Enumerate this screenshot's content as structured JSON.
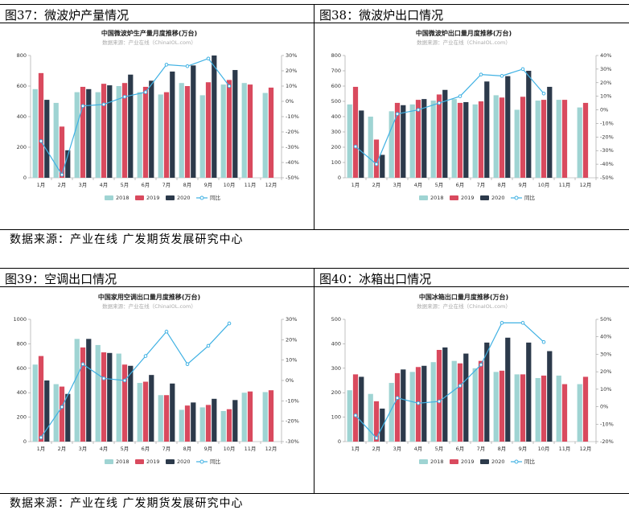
{
  "panels": [
    {
      "header": "图37：微波炉产量情况",
      "chart_data": {
        "type": "bar",
        "title": "中国微波炉生产量月度推移(万台)",
        "subtitle": "数据来源：产业在线（ChinaIOL.com）",
        "categories": [
          "1月",
          "2月",
          "3月",
          "4月",
          "5月",
          "6月",
          "7月",
          "8月",
          "9月",
          "10月",
          "11月",
          "12月"
        ],
        "series": [
          {
            "name": "2018",
            "values": [
              580,
              490,
              560,
              560,
              600,
              560,
              545,
              620,
              540,
              610,
              620,
              555
            ],
            "color": "#9fd4d3"
          },
          {
            "name": "2019",
            "values": [
              685,
              335,
              595,
              615,
              620,
              595,
              560,
              600,
              625,
              640,
              610,
              590
            ],
            "color": "#d94a5e"
          },
          {
            "name": "2020",
            "values": [
              510,
              180,
              580,
              605,
              675,
              635,
              695,
              735,
              800,
              705,
              null,
              null
            ],
            "color": "#2c3a4b"
          }
        ],
        "line": {
          "name": "同比",
          "values": [
            -26,
            -48,
            -3,
            -2,
            3,
            6,
            24,
            23,
            28,
            10,
            null,
            null
          ],
          "color": "#3fb1e3"
        },
        "ylim": [
          0,
          800
        ],
        "yticks": [
          0,
          200,
          400,
          600,
          800
        ],
        "y2lim": [
          -50,
          30
        ],
        "y2ticks": [
          -50,
          -40,
          -30,
          -20,
          -10,
          0,
          10,
          20,
          30
        ]
      }
    },
    {
      "header": "图38：微波炉出口情况",
      "chart_data": {
        "type": "bar",
        "title": "中国微波炉出口量月度推移(万台)",
        "subtitle": "数据来源：产业在线（ChinaIOL.com）",
        "categories": [
          "1月",
          "2月",
          "3月",
          "4月",
          "5月",
          "6月",
          "7月",
          "8月",
          "9月",
          "10月",
          "11月",
          "12月"
        ],
        "series": [
          {
            "name": "2018",
            "values": [
              480,
              400,
              435,
              480,
              505,
              515,
              480,
              540,
              445,
              505,
              510,
              460
            ],
            "color": "#9fd4d3"
          },
          {
            "name": "2019",
            "values": [
              595,
              250,
              490,
              510,
              545,
              490,
              500,
              525,
              530,
              510,
              510,
              490
            ],
            "color": "#d94a5e"
          },
          {
            "name": "2020",
            "values": [
              440,
              150,
              475,
              515,
              575,
              495,
              630,
              665,
              700,
              595,
              null,
              null
            ],
            "color": "#2c3a4b"
          }
        ],
        "line": {
          "name": "同比",
          "values": [
            -27,
            -40,
            -3,
            0,
            5,
            10,
            26,
            25,
            30,
            12,
            null,
            null
          ],
          "color": "#3fb1e3"
        },
        "ylim": [
          0,
          800
        ],
        "yticks": [
          0,
          100,
          200,
          300,
          400,
          500,
          600,
          700,
          800
        ],
        "y2lim": [
          -50,
          40
        ],
        "y2ticks": [
          -50,
          -40,
          -30,
          -20,
          -10,
          0,
          10,
          20,
          30,
          40
        ]
      }
    },
    {
      "header": "图39：空调出口情况",
      "chart_data": {
        "type": "bar",
        "title": "中国家用空调出口量月度推移(万台)",
        "subtitle": "数据来源：产业在线（ChinaIOL.com）",
        "categories": [
          "1月",
          "2月",
          "3月",
          "4月",
          "5月",
          "6月",
          "7月",
          "8月",
          "9月",
          "10月",
          "11月",
          "12月"
        ],
        "series": [
          {
            "name": "2018",
            "values": [
              630,
              470,
              840,
              790,
              720,
              480,
              380,
              260,
              280,
              250,
              400,
              405
            ],
            "color": "#9fd4d3"
          },
          {
            "name": "2019",
            "values": [
              700,
              450,
              770,
              730,
              630,
              490,
              380,
              295,
              300,
              265,
              410,
              420
            ],
            "color": "#d94a5e"
          },
          {
            "name": "2020",
            "values": [
              500,
              390,
              840,
              725,
              620,
              545,
              475,
              320,
              350,
              340,
              null,
              null
            ],
            "color": "#2c3a4b"
          }
        ],
        "line": {
          "name": "同比",
          "values": [
            -28,
            -13,
            8,
            1,
            0,
            12,
            24,
            8,
            17,
            28,
            null,
            null
          ],
          "color": "#3fb1e3"
        },
        "ylim": [
          0,
          1000
        ],
        "yticks": [
          0,
          200,
          400,
          600,
          800,
          1000
        ],
        "y2lim": [
          -30,
          30
        ],
        "y2ticks": [
          -30,
          -20,
          -10,
          0,
          10,
          20,
          30
        ]
      }
    },
    {
      "header": "图40：冰箱出口情况",
      "chart_data": {
        "type": "bar",
        "title": "中国冰箱出口量月度推移(万台)",
        "subtitle": "数据来源：产业在线（ChinaIOL.com）",
        "categories": [
          "1月",
          "2月",
          "3月",
          "4月",
          "5月",
          "6月",
          "7月",
          "8月",
          "9月",
          "10月",
          "11月",
          "12月"
        ],
        "series": [
          {
            "name": "2018",
            "values": [
              210,
              195,
              240,
              285,
              325,
              330,
              300,
              285,
              275,
              260,
              270,
              235
            ],
            "color": "#9fd4d3"
          },
          {
            "name": "2019",
            "values": [
              275,
              165,
              280,
              305,
              375,
              320,
              330,
              290,
              275,
              270,
              235,
              265
            ],
            "color": "#d94a5e"
          },
          {
            "name": "2020",
            "values": [
              265,
              135,
              295,
              310,
              385,
              360,
              405,
              425,
              405,
              370,
              null,
              null
            ],
            "color": "#2c3a4b"
          }
        ],
        "line": {
          "name": "同比",
          "values": [
            -5,
            -18,
            5,
            2,
            3,
            12,
            24,
            48,
            48,
            37,
            null,
            null
          ],
          "color": "#3fb1e3"
        },
        "ylim": [
          0,
          500
        ],
        "yticks": [
          0,
          100,
          200,
          300,
          400,
          500
        ],
        "y2lim": [
          -20,
          50
        ],
        "y2ticks": [
          -20,
          -10,
          0,
          10,
          20,
          30,
          40,
          50
        ]
      }
    }
  ],
  "sources": [
    "数据来源：产业在线    广发期货发展研究中心",
    "数据来源：产业在线    广发期货发展研究中心"
  ]
}
